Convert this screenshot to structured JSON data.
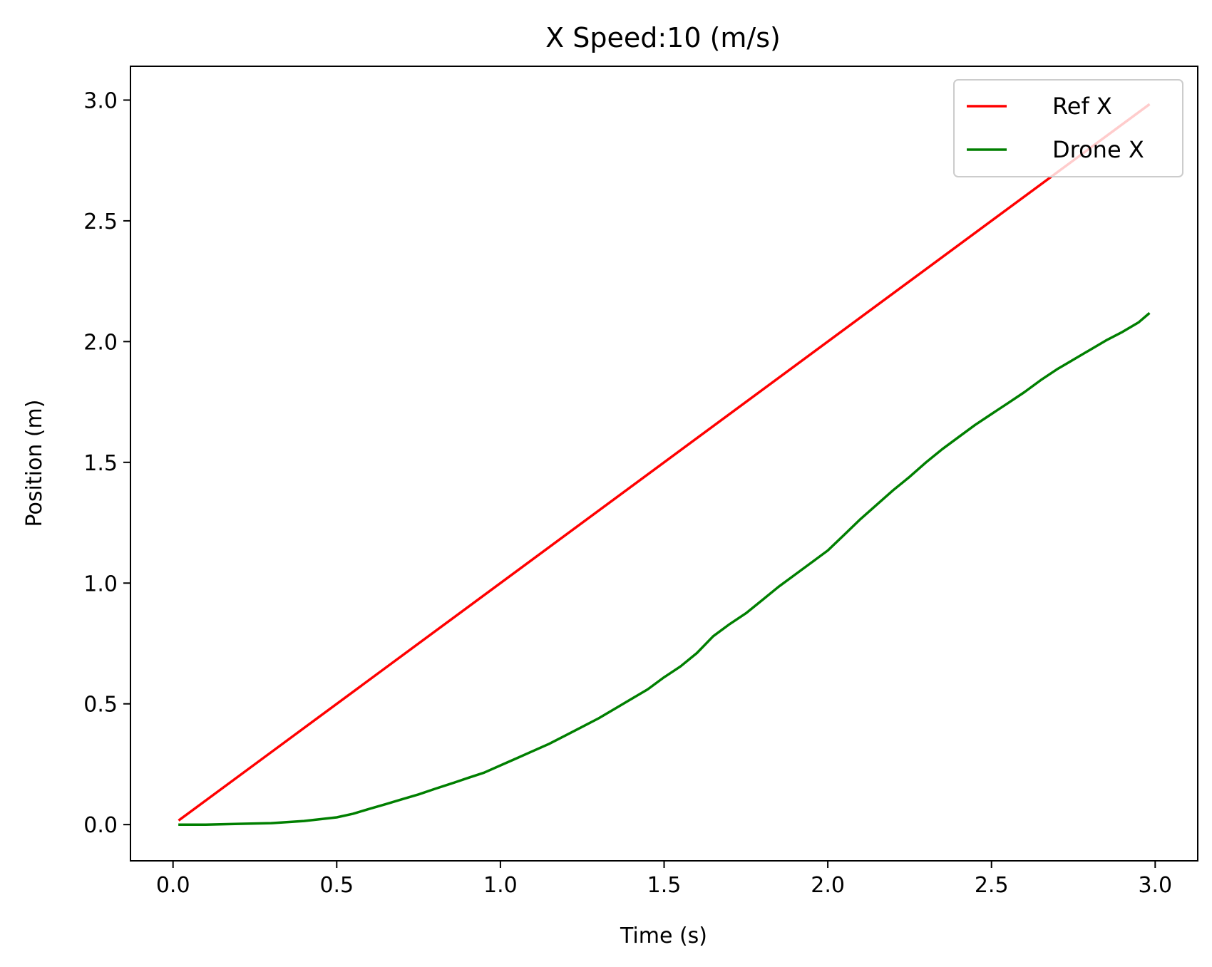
{
  "chart_data": {
    "type": "line",
    "title": "X Speed:10 (m/s)",
    "xlabel": "Time (s)",
    "ylabel": "Position (m)",
    "xlim": [
      -0.13,
      3.13
    ],
    "ylim": [
      -0.15,
      3.14
    ],
    "xticks": [
      0.0,
      0.5,
      1.0,
      1.5,
      2.0,
      2.5,
      3.0
    ],
    "xtick_labels": [
      "0.0",
      "0.5",
      "1.0",
      "1.5",
      "2.0",
      "2.5",
      "3.0"
    ],
    "yticks": [
      0.0,
      0.5,
      1.0,
      1.5,
      2.0,
      2.5,
      3.0
    ],
    "ytick_labels": [
      "0.0",
      "0.5",
      "1.0",
      "1.5",
      "2.0",
      "2.5",
      "3.0"
    ],
    "grid": false,
    "legend_position": "top-right",
    "series": [
      {
        "name": "Ref X",
        "color": "#ff0000",
        "x": [
          0.02,
          2.98
        ],
        "y": [
          0.02,
          2.98
        ]
      },
      {
        "name": "Drone X",
        "color": "#007f00",
        "x": [
          0.02,
          0.1,
          0.2,
          0.3,
          0.4,
          0.5,
          0.55,
          0.6,
          0.65,
          0.7,
          0.75,
          0.8,
          0.85,
          0.9,
          0.95,
          1.0,
          1.05,
          1.1,
          1.15,
          1.2,
          1.25,
          1.3,
          1.35,
          1.4,
          1.45,
          1.5,
          1.55,
          1.6,
          1.65,
          1.7,
          1.75,
          1.8,
          1.85,
          1.9,
          1.95,
          2.0,
          2.05,
          2.1,
          2.15,
          2.2,
          2.25,
          2.3,
          2.35,
          2.4,
          2.45,
          2.5,
          2.55,
          2.6,
          2.65,
          2.7,
          2.75,
          2.8,
          2.85,
          2.9,
          2.95,
          2.98
        ],
        "y": [
          0.0,
          0.0,
          0.003,
          0.006,
          0.015,
          0.03,
          0.045,
          0.065,
          0.085,
          0.105,
          0.125,
          0.148,
          0.17,
          0.193,
          0.215,
          0.245,
          0.275,
          0.305,
          0.335,
          0.37,
          0.405,
          0.44,
          0.48,
          0.52,
          0.56,
          0.61,
          0.655,
          0.71,
          0.78,
          0.83,
          0.875,
          0.93,
          0.985,
          1.035,
          1.085,
          1.135,
          1.2,
          1.265,
          1.325,
          1.385,
          1.44,
          1.5,
          1.555,
          1.605,
          1.655,
          1.7,
          1.745,
          1.79,
          1.84,
          1.885,
          1.925,
          1.965,
          2.005,
          2.04,
          2.08,
          2.115
        ]
      }
    ]
  }
}
